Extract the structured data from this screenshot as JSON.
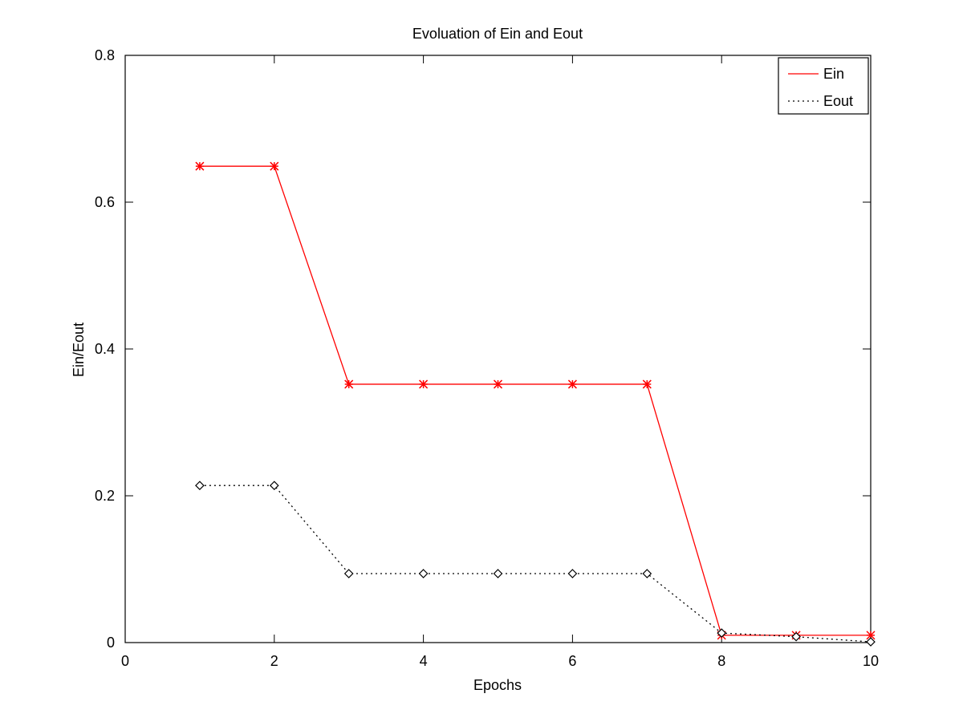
{
  "chart_data": {
    "type": "line",
    "title": "Evoluation of Ein and Eout",
    "xlabel": "Epochs",
    "ylabel": "Ein/Eout",
    "xlim": [
      0,
      10
    ],
    "ylim": [
      0,
      0.8
    ],
    "xticks": [
      0,
      2,
      4,
      6,
      8,
      10
    ],
    "xtick_labels": [
      "0",
      "2",
      "4",
      "6",
      "8",
      "10"
    ],
    "yticks": [
      0,
      0.2,
      0.4,
      0.6,
      0.8
    ],
    "ytick_labels": [
      "0",
      "0.2",
      "0.4",
      "0.6",
      "0.8"
    ],
    "grid": false,
    "legend_position": "top-right",
    "x": [
      1,
      2,
      3,
      4,
      5,
      6,
      7,
      8,
      9,
      10
    ],
    "series": [
      {
        "name": "Ein",
        "color": "#ff0000",
        "line_style": "solid",
        "marker": "asterisk",
        "values": [
          0.649,
          0.649,
          0.352,
          0.352,
          0.352,
          0.352,
          0.352,
          0.01,
          0.01,
          0.01
        ]
      },
      {
        "name": "Eout",
        "color": "#000000",
        "line_style": "dotted",
        "marker": "diamond",
        "values": [
          0.214,
          0.214,
          0.094,
          0.094,
          0.094,
          0.094,
          0.094,
          0.013,
          0.008,
          0.001
        ]
      }
    ]
  }
}
